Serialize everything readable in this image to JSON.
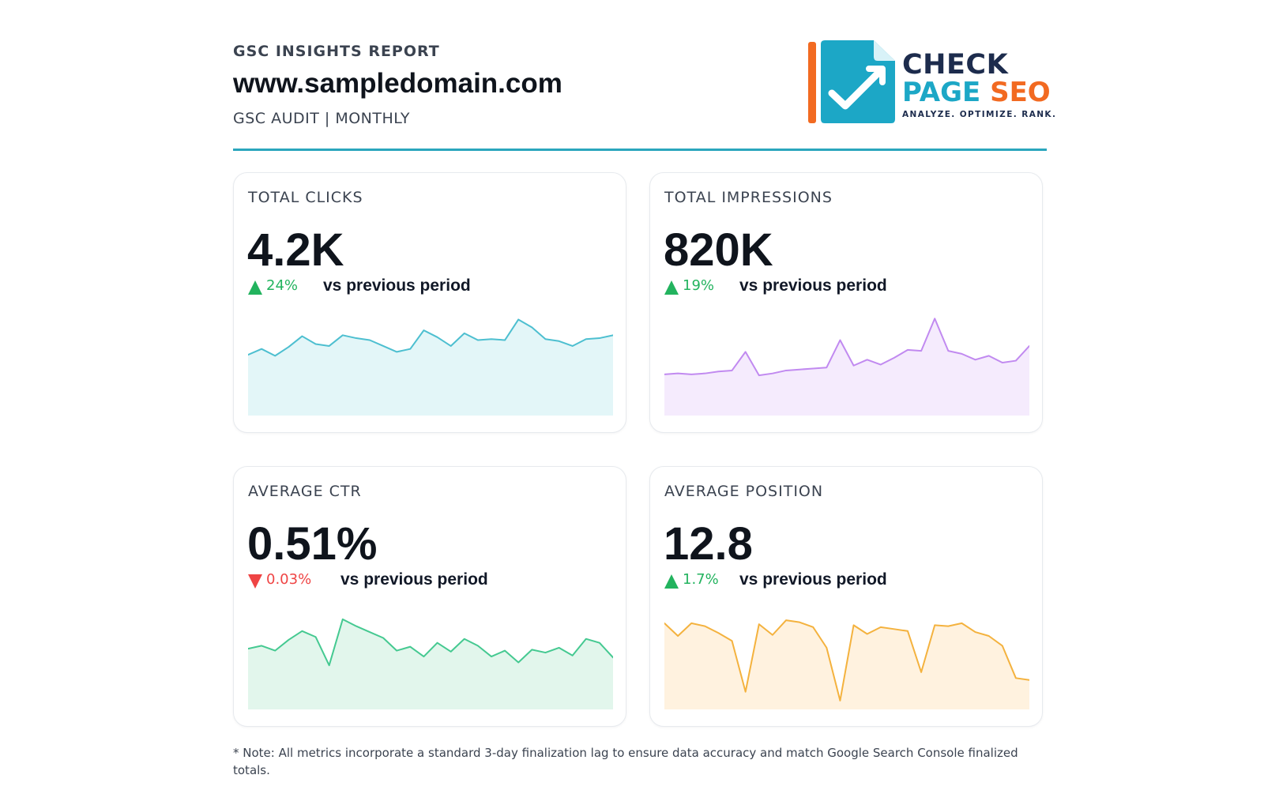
{
  "header": {
    "kicker": "GSC INSIGHTS REPORT",
    "domain": "www.sampledomain.com",
    "subtitle": "GSC AUDIT | MONTHLY"
  },
  "logo": {
    "line1": "CHECK",
    "line2a": "PAGE",
    "line2b": "SEO",
    "tagline": "ANALYZE. OPTIMIZE. RANK.",
    "colors": {
      "orange": "#f26a21",
      "cyan": "#1ca7c6",
      "navy": "#1d2c4d"
    },
    "icon": "document-checkmark-trend-icon"
  },
  "accent_colors": {
    "header_rule": "#2aa6bd",
    "up": "#22b35e",
    "down": "#ef4444"
  },
  "cards": [
    {
      "label": "TOTAL CLICKS",
      "value": "4.2K",
      "delta": "24%",
      "direction": "up",
      "comparison": "vs previous period"
    },
    {
      "label": "TOTAL IMPRESSIONS",
      "value": "820K",
      "delta": "19%",
      "direction": "up",
      "comparison": "vs previous period"
    },
    {
      "label": "AVERAGE CTR",
      "value": "0.51%",
      "delta": "0.03%",
      "direction": "down",
      "comparison": "vs previous period"
    },
    {
      "label": "AVERAGE POSITION",
      "value": "12.8",
      "delta": "1.7%",
      "direction": "up",
      "comparison": "vs previous period"
    }
  ],
  "chart_data": [
    {
      "type": "area",
      "series": [
        {
          "values": [
            0.62,
            0.68,
            0.61,
            0.7,
            0.81,
            0.73,
            0.71,
            0.82,
            0.79,
            0.77,
            0.71,
            0.65,
            0.68,
            0.87,
            0.8,
            0.71,
            0.84,
            0.77,
            0.78,
            0.77,
            0.98,
            0.9,
            0.78,
            0.76,
            0.71,
            0.78,
            0.79,
            0.82
          ]
        }
      ],
      "ylim": [
        0,
        1
      ],
      "line_color": "#4dbfd0",
      "fill_color": "#e3f6f8"
    },
    {
      "type": "area",
      "series": [
        {
          "values": [
            0.42,
            0.43,
            0.42,
            0.43,
            0.45,
            0.46,
            0.65,
            0.41,
            0.43,
            0.46,
            0.47,
            0.48,
            0.49,
            0.77,
            0.51,
            0.57,
            0.52,
            0.59,
            0.67,
            0.66,
            0.99,
            0.66,
            0.63,
            0.57,
            0.61,
            0.54,
            0.56,
            0.71
          ]
        }
      ],
      "ylim": [
        0,
        1
      ],
      "line_color": "#c18af0",
      "fill_color": "#f5ebfd"
    },
    {
      "type": "area",
      "series": [
        {
          "values": [
            0.62,
            0.65,
            0.6,
            0.71,
            0.8,
            0.74,
            0.45,
            0.92,
            0.85,
            0.79,
            0.73,
            0.6,
            0.64,
            0.54,
            0.68,
            0.59,
            0.72,
            0.65,
            0.54,
            0.6,
            0.48,
            0.61,
            0.58,
            0.63,
            0.55,
            0.72,
            0.68,
            0.53
          ]
        }
      ],
      "ylim": [
        0,
        1
      ],
      "line_color": "#45c991",
      "fill_color": "#e2f6ec"
    },
    {
      "type": "area",
      "series": [
        {
          "values": [
            0.88,
            0.75,
            0.88,
            0.85,
            0.78,
            0.7,
            0.18,
            0.87,
            0.76,
            0.91,
            0.89,
            0.84,
            0.63,
            0.09,
            0.86,
            0.77,
            0.84,
            0.82,
            0.8,
            0.38,
            0.86,
            0.85,
            0.88,
            0.79,
            0.75,
            0.65,
            0.32,
            0.3
          ]
        }
      ],
      "ylim": [
        0,
        1
      ],
      "line_color": "#f4b23e",
      "fill_color": "#fff2df"
    }
  ],
  "note": "* Note: All metrics incorporate a standard 3-day finalization lag to ensure data accuracy and match Google Search Console finalized totals."
}
